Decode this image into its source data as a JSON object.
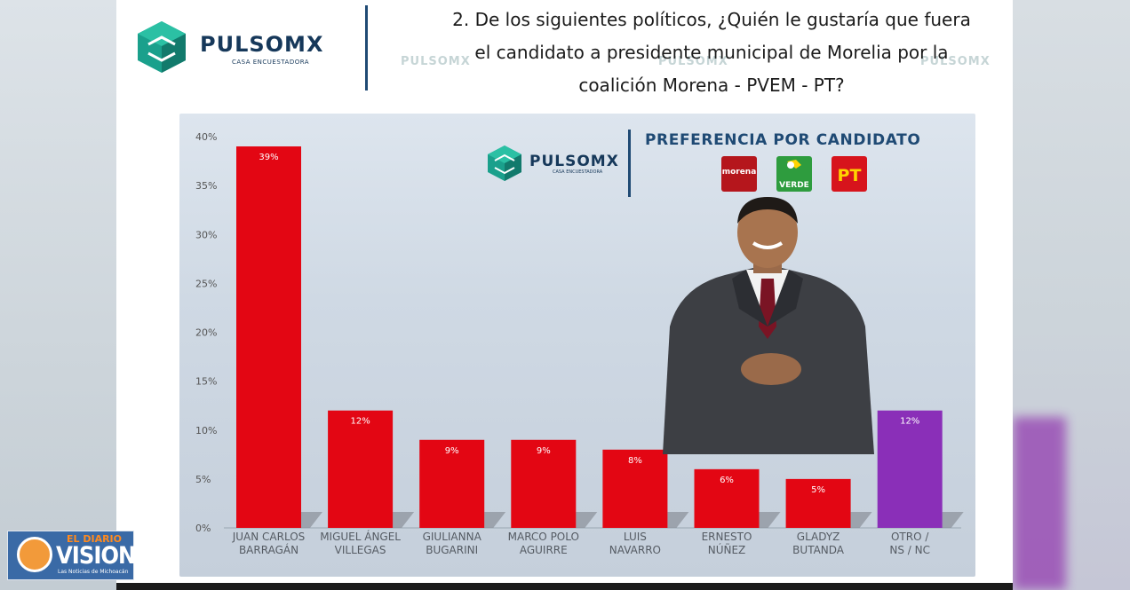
{
  "header": {
    "brand_name": "PULSOMX",
    "brand_sub": "CASA ENCUESTADORA",
    "question_lines": [
      "2. De los siguientes políticos, ¿Quién le gustaría que fuera",
      "el candidato a presidente municipal de Morelia por la",
      "coalición Morena - PVEM - PT?"
    ],
    "watermark": "PULSOMX"
  },
  "inset": {
    "brand_name": "PULSOMX",
    "brand_sub": "CASA ENCUESTADORA",
    "title": "PREFERENCIA POR CANDIDATO",
    "parties": [
      "morena",
      "VERDE",
      "PT"
    ]
  },
  "publisher": {
    "small": "EL DIARIO",
    "big": "VISION",
    "tagline": "Las Noticias de Michoacán"
  },
  "colors": {
    "primary_bar": "#e30613",
    "other_bar": "#8a2fb8",
    "brand_blue": "#16385a",
    "brand_teal": "#1aa08c"
  },
  "chart_data": {
    "type": "bar",
    "categories": [
      [
        "JUAN CARLOS",
        "BARRAGÁN"
      ],
      [
        "MIGUEL ÁNGEL",
        "VILLEGAS"
      ],
      [
        "GIULIANNA",
        "BUGARINI"
      ],
      [
        "MARCO POLO",
        "AGUIRRE"
      ],
      [
        "LUIS",
        "NAVARRO"
      ],
      [
        "ERNESTO",
        "NÚÑEZ"
      ],
      [
        "GLADYZ",
        "BUTANDA"
      ],
      [
        "OTRO /",
        "NS / NC"
      ]
    ],
    "values": [
      39,
      12,
      9,
      9,
      8,
      6,
      5,
      12
    ],
    "value_labels": [
      "39%",
      "12%",
      "9%",
      "9%",
      "8%",
      "6%",
      "5%",
      "12%"
    ],
    "bar_colors": [
      "#e30613",
      "#e30613",
      "#e30613",
      "#e30613",
      "#e30613",
      "#e30613",
      "#e30613",
      "#8a2fb8"
    ],
    "yticks": [
      "0%",
      "5%",
      "10%",
      "15%",
      "20%",
      "25%",
      "30%",
      "35%",
      "40%"
    ],
    "ylim": [
      0,
      40
    ],
    "grid": false,
    "legend": "none"
  }
}
